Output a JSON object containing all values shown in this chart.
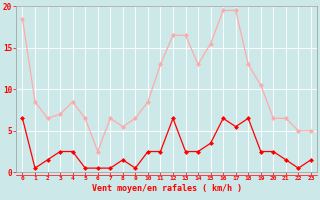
{
  "hours": [
    0,
    1,
    2,
    3,
    4,
    5,
    6,
    7,
    8,
    9,
    10,
    11,
    12,
    13,
    14,
    15,
    16,
    17,
    18,
    19,
    20,
    21,
    22,
    23
  ],
  "wind_avg": [
    6.5,
    0.5,
    1.5,
    2.5,
    2.5,
    0.5,
    0.5,
    0.5,
    1.5,
    0.5,
    2.5,
    2.5,
    6.5,
    2.5,
    2.5,
    3.5,
    6.5,
    5.5,
    6.5,
    2.5,
    2.5,
    1.5,
    0.5,
    1.5
  ],
  "wind_gust": [
    18.5,
    8.5,
    6.5,
    7.0,
    8.5,
    6.5,
    2.5,
    6.5,
    5.5,
    6.5,
    8.5,
    13.0,
    16.5,
    16.5,
    13.0,
    15.5,
    19.5,
    19.5,
    13.0,
    10.5,
    6.5,
    6.5,
    5.0,
    5.0
  ],
  "color_avg": "#ff0000",
  "color_gust": "#ffaaaa",
  "bg_color": "#cce8e8",
  "grid_color": "#bbdddd",
  "xlabel": "Vent moyen/en rafales ( km/h )",
  "ylim": [
    0,
    20
  ],
  "yticks": [
    0,
    5,
    10,
    15,
    20
  ]
}
